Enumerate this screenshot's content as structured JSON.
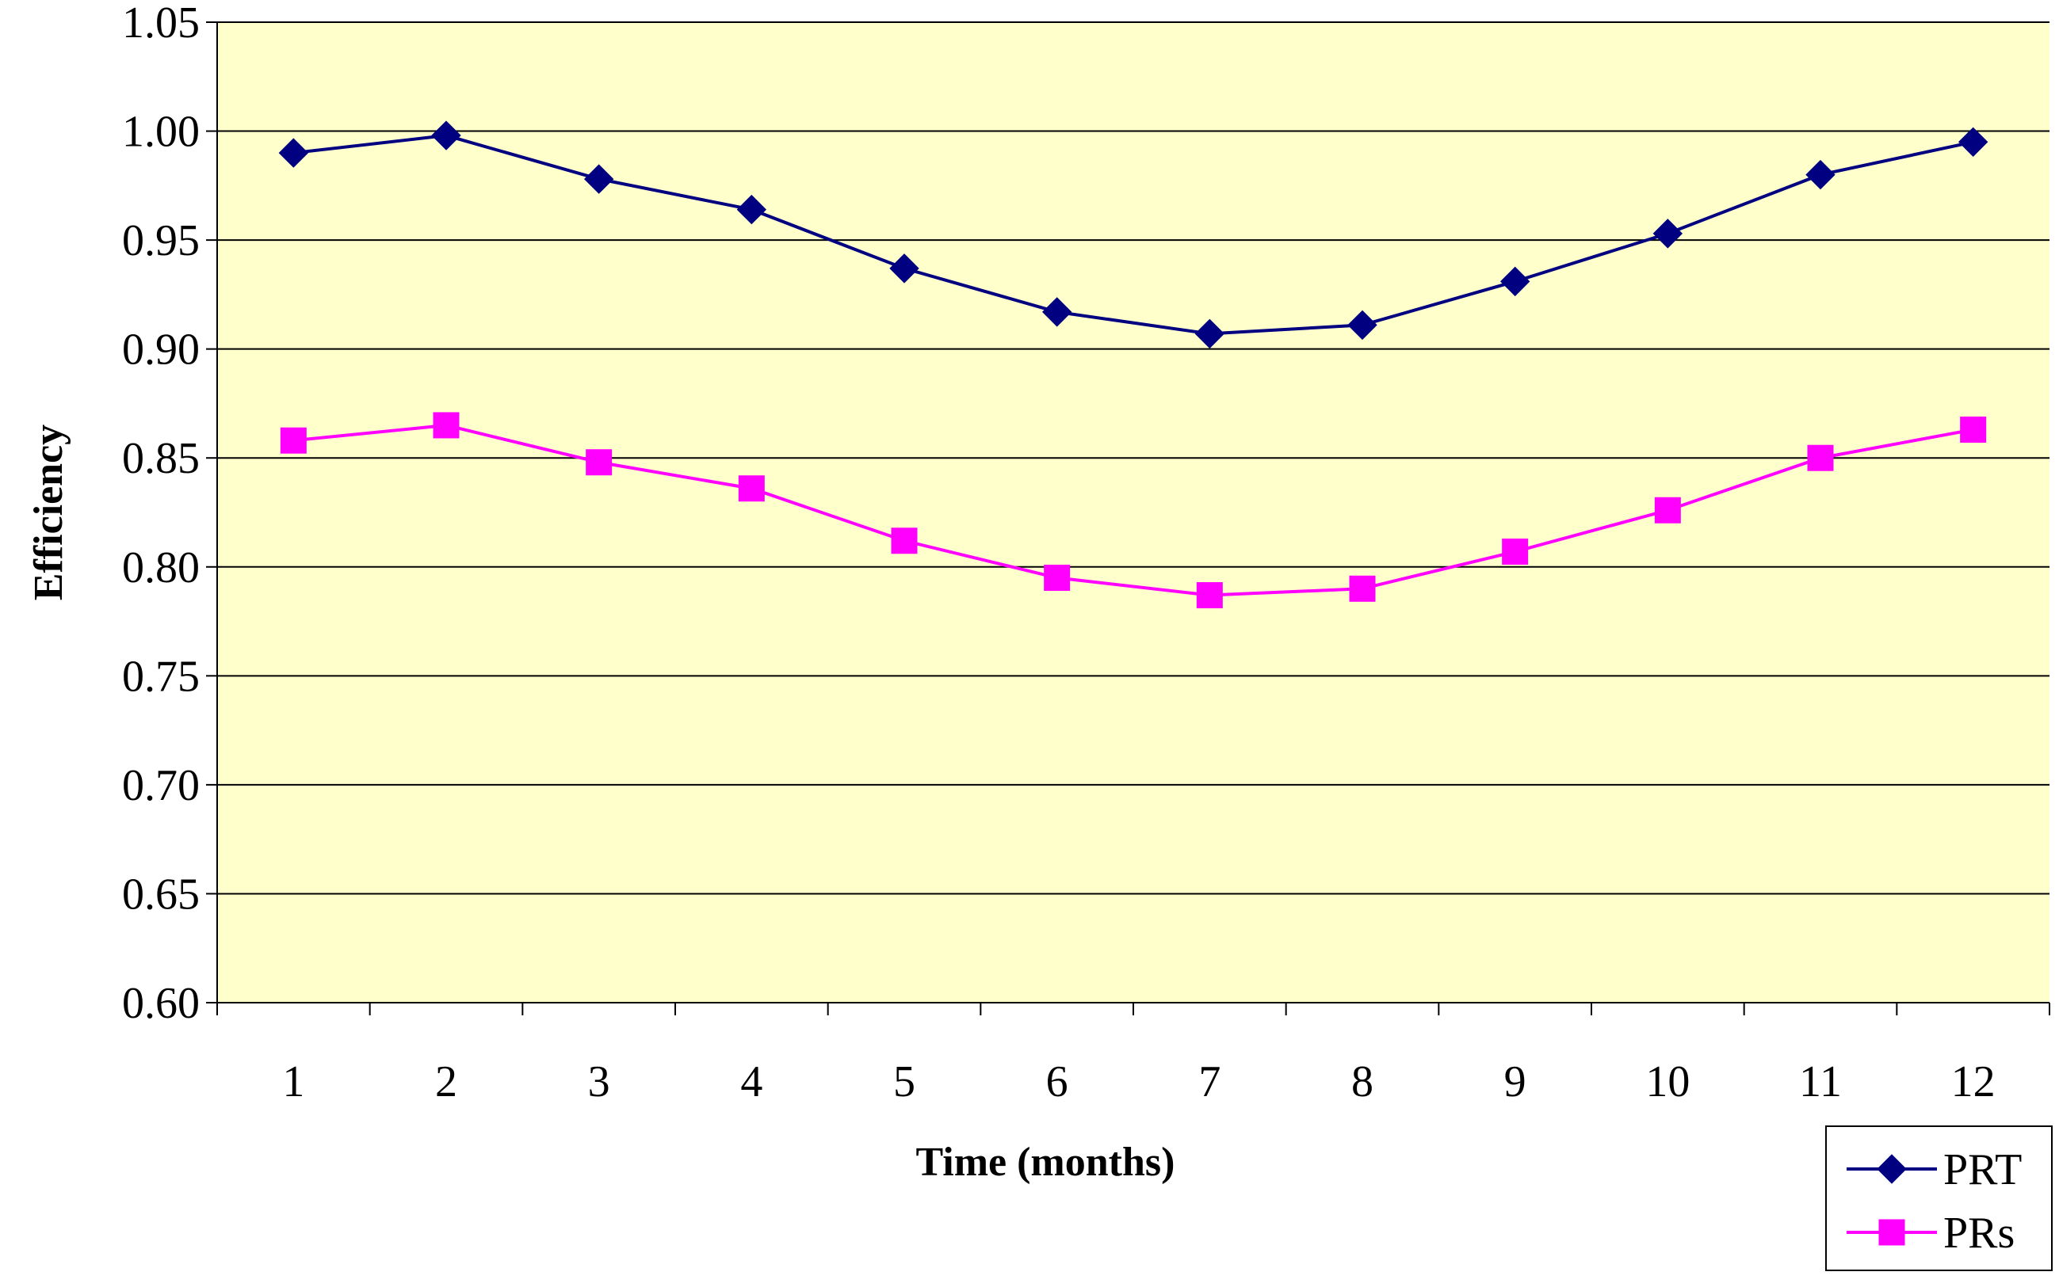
{
  "chart_data": {
    "type": "line",
    "title": "",
    "xlabel": "Time (months)",
    "ylabel": "Efficiency",
    "categories": [
      "1",
      "2",
      "3",
      "4",
      "5",
      "6",
      "7",
      "8",
      "9",
      "10",
      "11",
      "12"
    ],
    "ylim": [
      0.6,
      1.05
    ],
    "yticks": [
      "0.60",
      "0.65",
      "0.70",
      "0.75",
      "0.80",
      "0.85",
      "0.90",
      "0.95",
      "1.00",
      "1.05"
    ],
    "grid": true,
    "plot_background": "#FFFFCC",
    "legend_position": "bottom-right",
    "series": [
      {
        "name": "PRT",
        "color": "#000080",
        "marker": "diamond",
        "values": [
          0.99,
          0.998,
          0.978,
          0.964,
          0.937,
          0.917,
          0.907,
          0.911,
          0.931,
          0.953,
          0.98,
          0.995
        ]
      },
      {
        "name": "PRs",
        "color": "#FF00FF",
        "marker": "square",
        "values": [
          0.858,
          0.865,
          0.848,
          0.836,
          0.812,
          0.795,
          0.787,
          0.79,
          0.807,
          0.826,
          0.85,
          0.863
        ]
      }
    ]
  }
}
